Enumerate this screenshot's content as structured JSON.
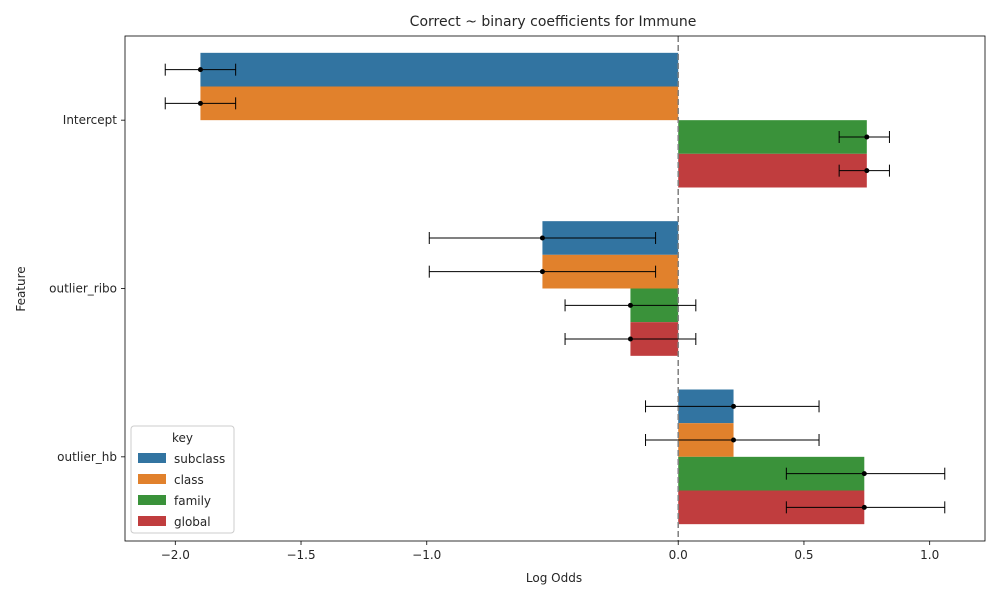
{
  "chart_data": {
    "type": "bar",
    "orientation": "horizontal",
    "title": "Correct ~ binary coefficients for Immune",
    "xlabel": "Log Odds",
    "ylabel": "Feature",
    "xlim": [
      -2.2,
      1.22
    ],
    "xticks": [
      -2.0,
      -1.5,
      -1.0,
      0.0,
      0.5,
      1.0
    ],
    "xtick_labels": [
      "−2.0",
      "−1.5",
      "−1.0",
      "0.0",
      "0.5",
      "1.0"
    ],
    "categories": [
      "Intercept",
      "outlier_ribo",
      "outlier_hb"
    ],
    "reference_line": 0.0,
    "legend": {
      "title": "key",
      "position": "lower-left"
    },
    "series": [
      {
        "name": "subclass",
        "color": "#3274a1",
        "values": [
          -1.9,
          -0.54,
          0.22
        ],
        "ci_low": [
          -2.04,
          -0.99,
          -0.13
        ],
        "ci_high": [
          -1.76,
          -0.09,
          0.56
        ]
      },
      {
        "name": "class",
        "color": "#e1812c",
        "values": [
          -1.9,
          -0.54,
          0.22
        ],
        "ci_low": [
          -2.04,
          -0.99,
          -0.13
        ],
        "ci_high": [
          -1.76,
          -0.09,
          0.56
        ]
      },
      {
        "name": "family",
        "color": "#3a923a",
        "values": [
          0.75,
          -0.19,
          0.74
        ],
        "ci_low": [
          0.64,
          -0.45,
          0.43
        ],
        "ci_high": [
          0.84,
          0.07,
          1.06
        ]
      },
      {
        "name": "global",
        "color": "#c03d3e",
        "values": [
          0.75,
          -0.19,
          0.74
        ],
        "ci_low": [
          0.64,
          -0.45,
          0.43
        ],
        "ci_high": [
          0.84,
          0.07,
          1.06
        ]
      }
    ]
  }
}
